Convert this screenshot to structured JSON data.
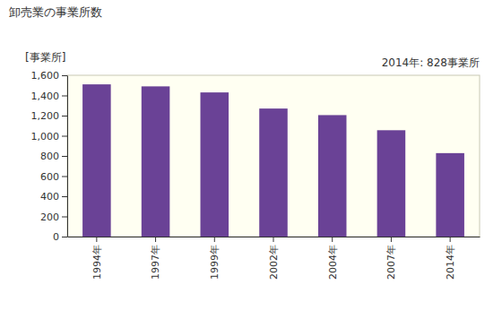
{
  "chart_data": {
    "type": "bar",
    "title": "卸売業の事業所数",
    "y_label": "[事業所]",
    "annotation": "2014年: 828事業所",
    "categories": [
      "1994年",
      "1997年",
      "1999年",
      "2002年",
      "2004年",
      "2007年",
      "2014年"
    ],
    "values": [
      1510,
      1490,
      1430,
      1270,
      1205,
      1055,
      828
    ],
    "color": "#6a4296",
    "ylim": [
      0,
      1600
    ],
    "yticks": [
      0,
      200,
      400,
      600,
      800,
      {
        "value": 1000,
        "label": "1,000"
      },
      {
        "value": 1200,
        "label": "1,200"
      },
      {
        "value": 1400,
        "label": "1,400"
      },
      {
        "value": 1600,
        "label": "1,600"
      }
    ],
    "grid": false
  }
}
